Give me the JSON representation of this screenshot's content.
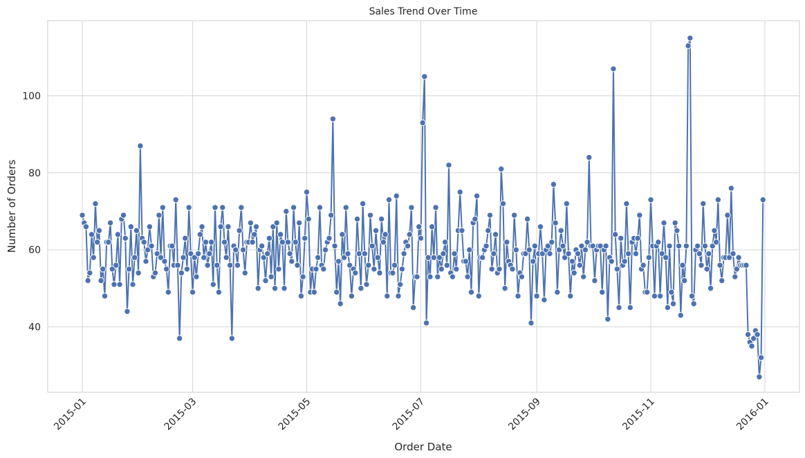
{
  "chart_data": {
    "type": "line",
    "title": "Sales Trend Over Time",
    "x_label": "Order Date",
    "y_label": "Number of Orders",
    "color": "#4c72b0",
    "grid": true,
    "xlim": [
      -18.5,
      383.5
    ],
    "ylim": [
      23,
      119.5
    ],
    "xticks": [
      {
        "value": 0,
        "label": "2015-01"
      },
      {
        "value": 59,
        "label": "2015-03"
      },
      {
        "value": 120,
        "label": "2015-05"
      },
      {
        "value": 181,
        "label": "2015-07"
      },
      {
        "value": 243,
        "label": "2015-09"
      },
      {
        "value": 304,
        "label": "2015-11"
      },
      {
        "value": 365,
        "label": "2016-01"
      }
    ],
    "yticks": [
      40,
      60,
      80,
      100
    ],
    "values": [
      69,
      67,
      66,
      52,
      54,
      64,
      58,
      72,
      62,
      65,
      52,
      55,
      48,
      62,
      62,
      67,
      55,
      51,
      56,
      64,
      51,
      68,
      69,
      63,
      44,
      55,
      66,
      51,
      58,
      65,
      54,
      87,
      63,
      62,
      57,
      60,
      66,
      61,
      53,
      54,
      59,
      69,
      58,
      71,
      57,
      55,
      49,
      61,
      61,
      56,
      73,
      56,
      37,
      54,
      58,
      63,
      55,
      71,
      59,
      49,
      58,
      53,
      59,
      64,
      66,
      58,
      62,
      56,
      59,
      62,
      51,
      71,
      56,
      49,
      66,
      71,
      62,
      58,
      66,
      56,
      37,
      61,
      60,
      56,
      65,
      71,
      60,
      54,
      62,
      62,
      67,
      62,
      64,
      66,
      50,
      60,
      61,
      58,
      52,
      59,
      63,
      53,
      66,
      50,
      67,
      55,
      64,
      62,
      50,
      70,
      62,
      59,
      57,
      71,
      62,
      56,
      67,
      48,
      53,
      63,
      75,
      68,
      49,
      55,
      49,
      55,
      58,
      71,
      56,
      55,
      60,
      62,
      63,
      69,
      94,
      61,
      49,
      57,
      46,
      64,
      58,
      71,
      59,
      56,
      48,
      55,
      54,
      68,
      59,
      50,
      72,
      59,
      51,
      56,
      69,
      61,
      55,
      65,
      58,
      54,
      68,
      62,
      64,
      48,
      73,
      54,
      54,
      56,
      74,
      48,
      51,
      55,
      59,
      62,
      61,
      64,
      71,
      45,
      53,
      53,
      66,
      63,
      93,
      105,
      41,
      58,
      53,
      66,
      58,
      71,
      53,
      58,
      55,
      59,
      62,
      56,
      82,
      54,
      53,
      59,
      55,
      65,
      75,
      65,
      57,
      57,
      53,
      60,
      49,
      67,
      68,
      74,
      48,
      58,
      58,
      60,
      61,
      65,
      69,
      55,
      59,
      64,
      54,
      55,
      81,
      72,
      50,
      62,
      57,
      56,
      55,
      69,
      60,
      48,
      54,
      53,
      59,
      59,
      68,
      60,
      41,
      57,
      61,
      48,
      59,
      66,
      59,
      47,
      60,
      61,
      59,
      62,
      77,
      67,
      49,
      60,
      65,
      61,
      58,
      72,
      59,
      48,
      57,
      54,
      60,
      59,
      56,
      61,
      53,
      60,
      62,
      84,
      61,
      61,
      52,
      60,
      61,
      61,
      49,
      60,
      61,
      42,
      58,
      57,
      107,
      64,
      55,
      45,
      63,
      56,
      57,
      72,
      59,
      45,
      62,
      63,
      59,
      63,
      69,
      55,
      56,
      49,
      49,
      58,
      73,
      61,
      48,
      61,
      62,
      48,
      59,
      67,
      58,
      45,
      61,
      49,
      46,
      67,
      65,
      61,
      43,
      56,
      52,
      61,
      113,
      115,
      48,
      46,
      60,
      61,
      59,
      56,
      72,
      61,
      55,
      59,
      50,
      61,
      65,
      62,
      73,
      56,
      52,
      58,
      58,
      69,
      58,
      76,
      59,
      53,
      55,
      58,
      56,
      56,
      56,
      56,
      38,
      36,
      35,
      37,
      39,
      38,
      27,
      32,
      73
    ]
  }
}
